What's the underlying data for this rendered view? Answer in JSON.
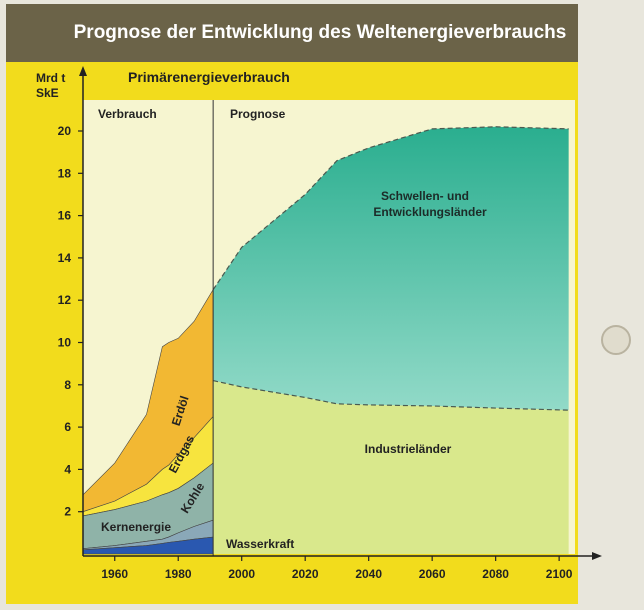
{
  "header": {
    "title": "Prognose der Entwicklung des Weltenergieverbrauchs"
  },
  "colors": {
    "frame_yellow": "#f2dc1c",
    "header_bg": "#6b6348",
    "plot_bg": "#f6f5d0",
    "developing": "#2bb090",
    "developing_light": "#86d6c4",
    "industrial": "#d9e88c",
    "oil": "#f2b833",
    "gas": "#f7e43e",
    "coal": "#9ec36b",
    "nuclear": "#8aa8b8",
    "hydro": "#2a58b0",
    "teal_band": "#3fa898"
  },
  "chart_data": {
    "type": "area",
    "title": "Primärenergieverbrauch",
    "ylabel": "Mrd t\nSkE",
    "xlim": [
      1950,
      2105
    ],
    "ylim": [
      0,
      21
    ],
    "x_ticks": [
      1960,
      1980,
      2000,
      2020,
      2040,
      2060,
      2080,
      2100
    ],
    "y_ticks": [
      2,
      4,
      6,
      8,
      10,
      12,
      14,
      16,
      18,
      20
    ],
    "divider_year": 1991,
    "section_labels": {
      "history": "Verbrauch",
      "forecast": "Prognose"
    },
    "history": {
      "x": [
        1950,
        1960,
        1970,
        1975,
        1977,
        1980,
        1985,
        1991
      ],
      "layers": [
        {
          "name": "Wasserkraft",
          "top": [
            0.2,
            0.3,
            0.4,
            0.5,
            0.55,
            0.6,
            0.7,
            0.8
          ]
        },
        {
          "name": "Kernenergie",
          "top": [
            0.25,
            0.4,
            0.6,
            0.7,
            0.8,
            1.0,
            1.3,
            1.6
          ]
        },
        {
          "name": "Kohle",
          "top": [
            1.8,
            2.1,
            2.5,
            2.8,
            2.9,
            3.1,
            3.6,
            4.3
          ]
        },
        {
          "name": "Erdgas",
          "top": [
            2.0,
            2.5,
            3.3,
            4.0,
            4.2,
            4.7,
            5.5,
            6.5
          ]
        },
        {
          "name": "Erdöl",
          "top": [
            2.8,
            4.3,
            6.6,
            9.8,
            10.0,
            10.2,
            11.0,
            12.5
          ]
        }
      ]
    },
    "forecast": {
      "x": [
        1991,
        2000,
        2020,
        2030,
        2040,
        2060,
        2080,
        2103
      ],
      "series": [
        {
          "name": "Industrieländer",
          "top": [
            8.2,
            7.9,
            7.4,
            7.1,
            7.05,
            7.0,
            6.9,
            6.8
          ]
        },
        {
          "name": "Schwellen- und\nEntwicklungsländer",
          "top": [
            12.5,
            14.5,
            17.0,
            18.6,
            19.2,
            20.1,
            20.2,
            20.1
          ]
        }
      ]
    },
    "labels": {
      "developing_1": "Schwellen- und",
      "developing_2": "Entwicklungsländer",
      "industrial": "Industrieländer",
      "hydro": "Wasserkraft",
      "nuclear": "Kernenergie",
      "coal": "Kohle",
      "gas": "Erdgas",
      "oil": "Erdöl"
    }
  }
}
